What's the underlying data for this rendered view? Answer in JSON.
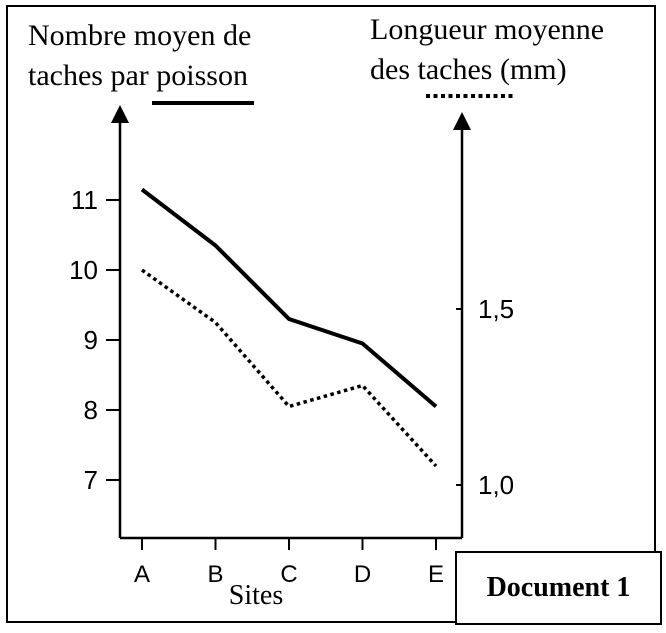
{
  "chart_data": {
    "type": "line",
    "xlabel": "Sites",
    "categories": [
      "A",
      "B",
      "C",
      "D",
      "E"
    ],
    "y_left": {
      "label": "Nombre moyen de\ntaches par poisson",
      "ticks": [
        7,
        8,
        9,
        10,
        11
      ],
      "range": [
        6.2,
        11.5
      ]
    },
    "y_right": {
      "label": "Longueur moyenne\ndes taches (mm)",
      "ticks": [
        1.0,
        1.5
      ],
      "tick_labels": [
        "1,0",
        "1,5"
      ],
      "range": [
        0.9,
        1.75
      ]
    },
    "series": [
      {
        "legend_style": "solid",
        "axis": "left",
        "values": [
          11.15,
          10.35,
          9.3,
          8.95,
          8.05
        ],
        "color": "#000000"
      },
      {
        "legend_style": "dotted",
        "axis": "left",
        "values": [
          10.0,
          9.25,
          8.05,
          8.35,
          7.2
        ],
        "color": "#000000"
      }
    ]
  },
  "document_label": "Document 1"
}
